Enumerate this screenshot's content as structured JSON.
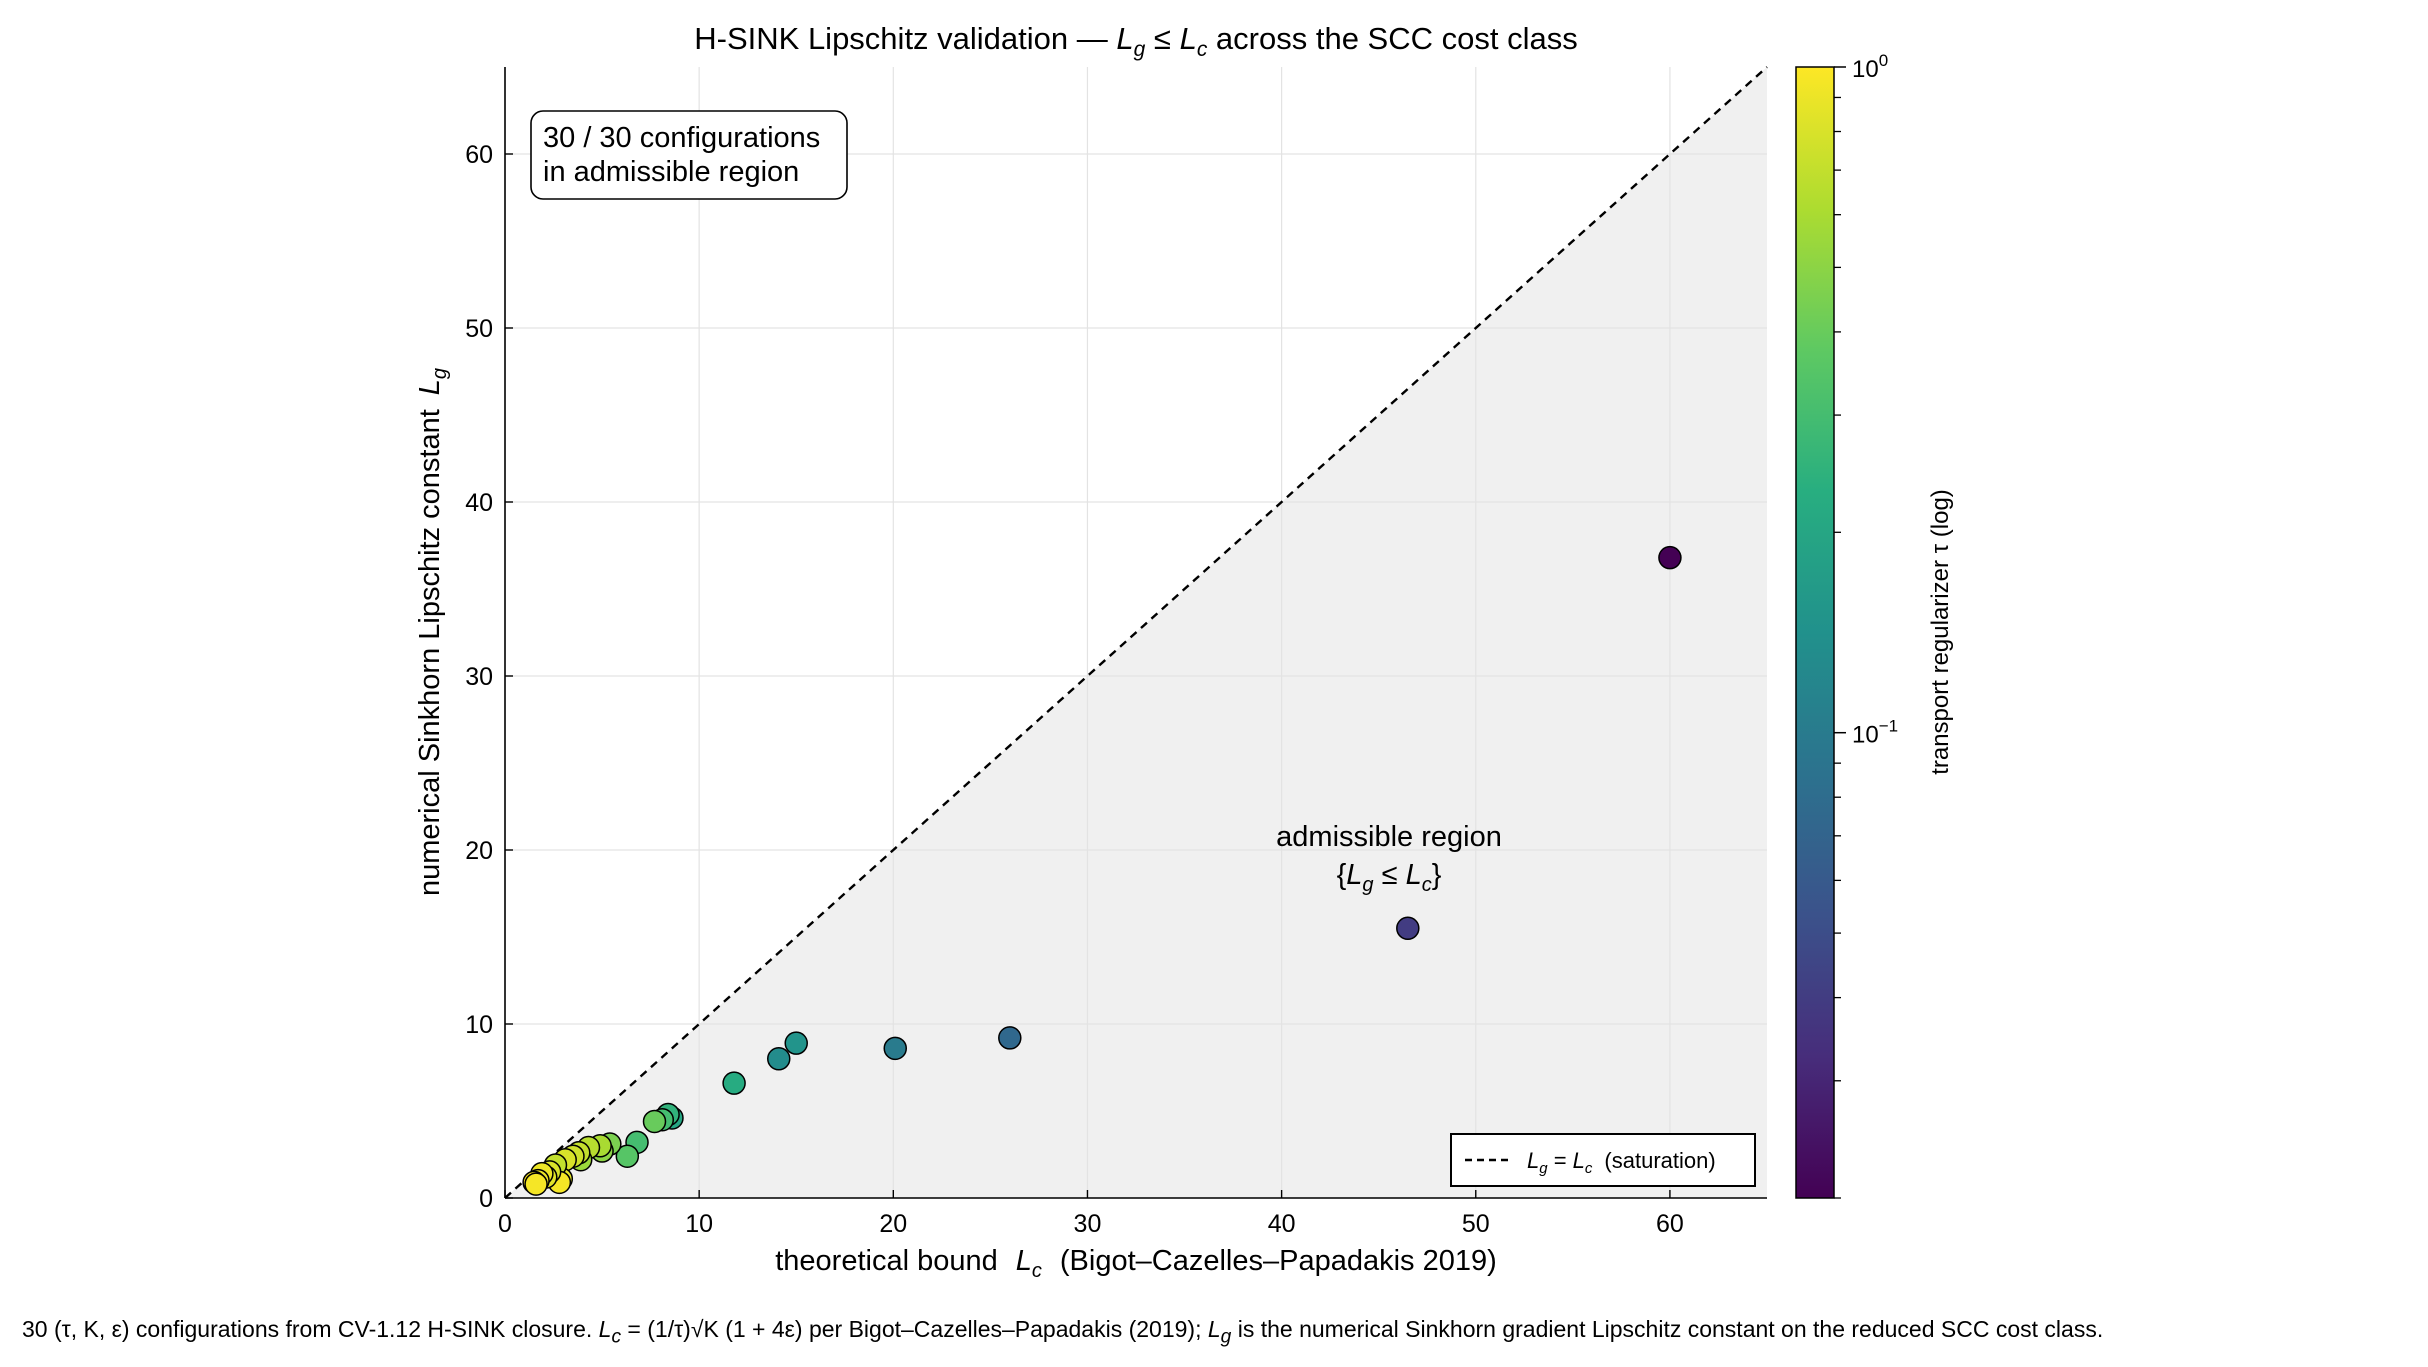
{
  "chart_data": {
    "type": "scatter",
    "title": {
      "before": "H-SINK Lipschitz validation — ",
      "lhs": "L",
      "lhs_sub": "g",
      "relation": " ≤ ",
      "rhs": "L",
      "rhs_sub": "c",
      "after": " across the SCC cost class"
    },
    "xlabel": {
      "text": "theoretical bound",
      "sym": "L",
      "sub": "c",
      "note": "(Bigot–Cazelles–Papadakis 2019)"
    },
    "ylabel": {
      "text": "numerical Sinkhorn Lipschitz constant",
      "sym": "L",
      "sub": "g"
    },
    "xlim": [
      0,
      65
    ],
    "ylim": [
      0,
      65
    ],
    "xticks": [
      0,
      10,
      20,
      30,
      40,
      50,
      60
    ],
    "yticks": [
      0,
      10,
      20,
      30,
      40,
      50,
      60
    ],
    "grid": true,
    "shaded_region": "y <= x",
    "colorscale": "viridis",
    "colorbar": {
      "label": "transport regularizer  τ (log)",
      "scale": "log",
      "range": [
        0.02,
        1.0
      ],
      "ticks": [
        {
          "value": 1.0,
          "base": "10",
          "exp": "0"
        },
        {
          "value": 0.1,
          "base": "10",
          "exp": "−1"
        }
      ]
    },
    "reference_line": {
      "type": "dashed",
      "x": [
        0,
        65
      ],
      "y": [
        0,
        65
      ]
    },
    "legend": {
      "position": "lower-right",
      "lhs": "L",
      "lhs_sub": "g",
      "eq": " = ",
      "rhs": "L",
      "rhs_sub": "c",
      "note": "(saturation)"
    },
    "annotations": {
      "count_box": {
        "line1": "30 / 30 configurations",
        "line2": "in admissible region"
      },
      "region_label": {
        "line1": "admissible region",
        "open": "{",
        "sym1": "L",
        "sub1": "g",
        "rel": " ≤ ",
        "sym2": "L",
        "sub2": "c",
        "close": "}"
      }
    },
    "points": [
      {
        "x": 60.0,
        "y": 36.8,
        "tau": 0.02
      },
      {
        "x": 46.5,
        "y": 15.5,
        "tau": 0.04
      },
      {
        "x": 26.0,
        "y": 9.2,
        "tau": 0.075
      },
      {
        "x": 20.1,
        "y": 8.6,
        "tau": 0.1
      },
      {
        "x": 15.0,
        "y": 8.9,
        "tau": 0.15
      },
      {
        "x": 14.1,
        "y": 8.0,
        "tau": 0.13
      },
      {
        "x": 11.8,
        "y": 6.6,
        "tau": 0.22
      },
      {
        "x": 8.6,
        "y": 4.6,
        "tau": 0.2
      },
      {
        "x": 8.4,
        "y": 4.8,
        "tau": 0.25
      },
      {
        "x": 8.1,
        "y": 4.5,
        "tau": 0.3
      },
      {
        "x": 7.7,
        "y": 4.4,
        "tau": 0.4
      },
      {
        "x": 6.8,
        "y": 3.2,
        "tau": 0.3
      },
      {
        "x": 6.3,
        "y": 2.4,
        "tau": 0.35
      },
      {
        "x": 5.4,
        "y": 3.1,
        "tau": 0.45
      },
      {
        "x": 5.0,
        "y": 2.7,
        "tau": 0.5
      },
      {
        "x": 4.9,
        "y": 3.0,
        "tau": 0.6
      },
      {
        "x": 4.3,
        "y": 2.9,
        "tau": 0.65
      },
      {
        "x": 3.9,
        "y": 2.2,
        "tau": 0.55
      },
      {
        "x": 3.8,
        "y": 2.6,
        "tau": 0.7
      },
      {
        "x": 3.5,
        "y": 2.4,
        "tau": 0.75
      },
      {
        "x": 3.1,
        "y": 2.2,
        "tau": 0.8
      },
      {
        "x": 2.9,
        "y": 1.1,
        "tau": 0.85
      },
      {
        "x": 2.6,
        "y": 1.9,
        "tau": 0.7
      },
      {
        "x": 2.8,
        "y": 0.9,
        "tau": 0.95
      },
      {
        "x": 2.3,
        "y": 1.5,
        "tau": 0.8
      },
      {
        "x": 2.1,
        "y": 1.2,
        "tau": 0.85
      },
      {
        "x": 1.9,
        "y": 1.4,
        "tau": 0.9
      },
      {
        "x": 1.7,
        "y": 1.0,
        "tau": 0.9
      },
      {
        "x": 1.5,
        "y": 0.9,
        "tau": 1.0
      },
      {
        "x": 1.6,
        "y": 0.8,
        "tau": 0.95
      }
    ]
  },
  "caption": {
    "p1": "30 (τ, K, ε) configurations from CV-1.12 H-SINK closure. ",
    "s1": "L",
    "s1_sub": "c",
    "p2": " = (1/τ)√K (1 + 4ε) per Bigot–Cazelles–Papadakis (2019); ",
    "s2": "L",
    "s2_sub": "g",
    "p3": " is the numerical Sinkhorn gradient Lipschitz constant on the reduced SCC cost class."
  }
}
